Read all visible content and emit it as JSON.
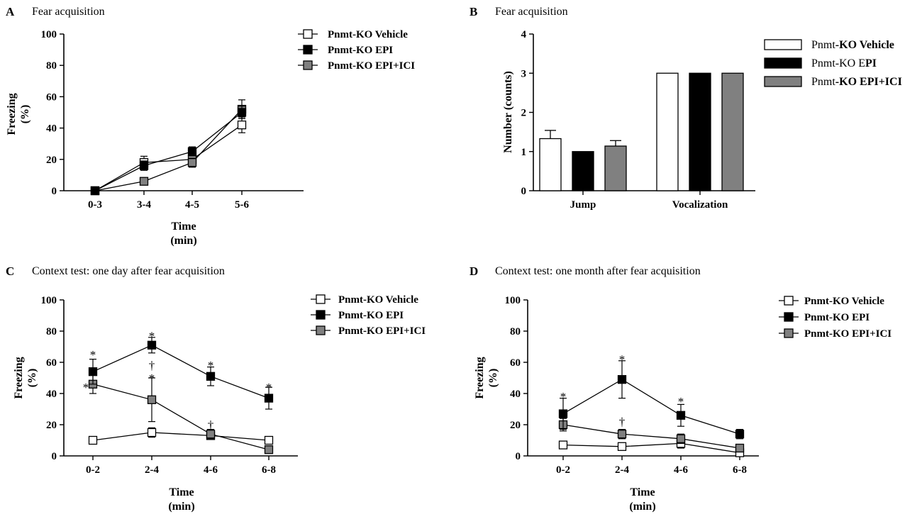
{
  "legend_names": {
    "vehicle": "Pnmt-KO Vehicle",
    "epi": "Pnmt-KO EPI",
    "epi_ici": "Pnmt-KO EPI+ICI"
  },
  "colors": {
    "vehicle": "#ffffff",
    "epi": "#000000",
    "epi_ici": "#808080"
  },
  "chart_data": [
    {
      "id": "A",
      "type": "line",
      "letter": "A",
      "title": "Fear acquisition",
      "ylabel_line1": "Freezing",
      "ylabel_line2": "(%)",
      "xlabel_line1": "Time",
      "xlabel_line2": "(min)",
      "ylim": [
        0,
        100
      ],
      "yticks": [
        "0",
        "20",
        "40",
        "60",
        "80",
        "100"
      ],
      "categories": [
        "0-3",
        "3-4",
        "4-5",
        "5-6"
      ],
      "series": [
        {
          "key": "vehicle",
          "name": "Pnmt-KO Vehicle",
          "values": [
            0,
            18,
            20,
            42
          ],
          "errors": [
            0,
            4,
            4,
            5
          ]
        },
        {
          "key": "epi",
          "name": "Pnmt-KO EPI",
          "values": [
            0,
            16,
            25,
            50
          ],
          "errors": [
            0,
            3,
            3,
            4
          ]
        },
        {
          "key": "epi_ici",
          "name": "Pnmt-KO EPI+ICI",
          "values": [
            0,
            6,
            18,
            52
          ],
          "errors": [
            0,
            2,
            3,
            6
          ]
        }
      ],
      "annotations": []
    },
    {
      "id": "B",
      "type": "bar",
      "letter": "B",
      "title": "Fear acquisition",
      "ylabel_line1": "Number (counts)",
      "ylim": [
        0,
        4
      ],
      "yticks": [
        "0",
        "1",
        "2",
        "3",
        "4"
      ],
      "categories": [
        "Jump",
        "Vocalization"
      ],
      "series": [
        {
          "key": "vehicle",
          "name": "Pnmt-KO Vehicle",
          "values": [
            1.33,
            3
          ],
          "errors": [
            0.21,
            0
          ]
        },
        {
          "key": "epi",
          "name": "Pnmt-KO EPI",
          "values": [
            1.0,
            3
          ],
          "errors": [
            0,
            0
          ]
        },
        {
          "key": "epi_ici",
          "name": "Pnmt-KO EPI+ICI",
          "values": [
            1.14,
            3
          ],
          "errors": [
            0.14,
            0
          ]
        }
      ],
      "legend_parts": [
        [
          "Pnmt",
          "-KO Vehicle"
        ],
        [
          "Pnmt-KO E",
          "PI"
        ],
        [
          "Pnmt",
          "-KO EPI+ICI"
        ]
      ]
    },
    {
      "id": "C",
      "type": "line",
      "letter": "C",
      "title": "Context test: one day after fear acquisition",
      "ylabel_line1": "Freezing",
      "ylabel_line2": "(%)",
      "xlabel_line1": "Time",
      "xlabel_line2": "(min)",
      "ylim": [
        0,
        100
      ],
      "yticks": [
        "0",
        "20",
        "40",
        "60",
        "80",
        "100"
      ],
      "categories": [
        "0-2",
        "2-4",
        "4-6",
        "6-8"
      ],
      "series": [
        {
          "key": "vehicle",
          "name": "Pnmt-KO Vehicle",
          "values": [
            10,
            15,
            13,
            10
          ],
          "errors": [
            2,
            3,
            2,
            2
          ]
        },
        {
          "key": "epi",
          "name": "Pnmt-KO EPI",
          "values": [
            54,
            71,
            51,
            37
          ],
          "errors": [
            8,
            5,
            6,
            7
          ]
        },
        {
          "key": "epi_ici",
          "name": "Pnmt-KO EPI+ICI",
          "values": [
            46,
            36,
            14,
            4
          ],
          "errors": [
            6,
            14,
            3,
            1
          ]
        }
      ],
      "annotations": [
        {
          "text": "*",
          "cat": 0,
          "y": 66
        },
        {
          "text": "*",
          "cat": 0,
          "y": 45,
          "dx": -0.12
        },
        {
          "text": "*",
          "cat": 1,
          "y": 78
        },
        {
          "text": "†",
          "cat": 1,
          "y": 59
        },
        {
          "text": "*",
          "cat": 1,
          "y": 51
        },
        {
          "text": "*",
          "cat": 2,
          "y": 59
        },
        {
          "text": "†",
          "cat": 2,
          "y": 21
        },
        {
          "text": "*",
          "cat": 3,
          "y": 45
        }
      ]
    },
    {
      "id": "D",
      "type": "line",
      "letter": "D",
      "title": "Context test: one month after fear acquisition",
      "ylabel_line1": "Freezing",
      "ylabel_line2": "(%)",
      "xlabel_line1": "Time",
      "xlabel_line2": "(min)",
      "ylim": [
        0,
        100
      ],
      "yticks": [
        "0",
        "20",
        "40",
        "60",
        "80",
        "100"
      ],
      "categories": [
        "0-2",
        "2-4",
        "4-6",
        "6-8"
      ],
      "series": [
        {
          "key": "vehicle",
          "name": "Pnmt-KO Vehicle",
          "values": [
            7,
            6,
            8,
            2
          ],
          "errors": [
            1,
            1,
            3,
            1
          ]
        },
        {
          "key": "epi",
          "name": "Pnmt-KO EPI",
          "values": [
            27,
            49,
            26,
            14
          ],
          "errors": [
            10,
            12,
            7,
            3
          ]
        },
        {
          "key": "epi_ici",
          "name": "Pnmt-KO EPI+ICI",
          "values": [
            20,
            14,
            11,
            5
          ],
          "errors": [
            4,
            3,
            3,
            2
          ]
        }
      ],
      "annotations": [
        {
          "text": "*",
          "cat": 0,
          "y": 39
        },
        {
          "text": "*",
          "cat": 1,
          "y": 63
        },
        {
          "text": "†",
          "cat": 1,
          "y": 23
        },
        {
          "text": "*",
          "cat": 2,
          "y": 36
        }
      ]
    }
  ]
}
